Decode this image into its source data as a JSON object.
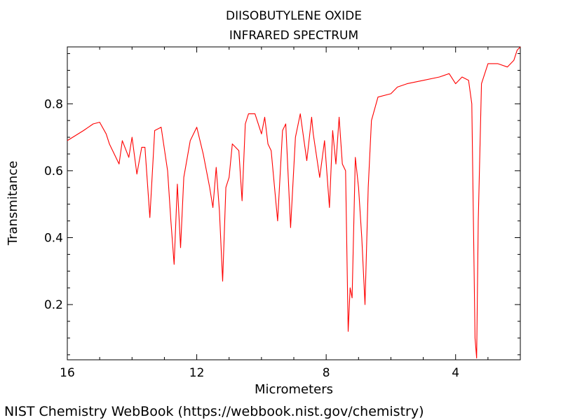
{
  "chart_data": {
    "type": "line",
    "title": "DIISOBUTYLENE OXIDE",
    "subtitle": "INFRARED SPECTRUM",
    "xlabel": "Micrometers",
    "ylabel": "Transmitance",
    "xlim": [
      16,
      2.0
    ],
    "ylim": [
      0.035,
      0.97
    ],
    "x_major_ticks": [
      16,
      12,
      8,
      4
    ],
    "x_tick_labels": [
      "16",
      "12",
      "8",
      "4"
    ],
    "y_major_ticks": [
      0.2,
      0.4,
      0.6,
      0.8
    ],
    "y_tick_labels": [
      "0.2",
      "0.4",
      "0.6",
      "0.8"
    ],
    "grid": false,
    "legend": "none",
    "line_color": "#ff0000",
    "series": [
      {
        "x": [
          16.0,
          15.5,
          15.2,
          15.0,
          14.8,
          14.7,
          14.4,
          14.3,
          14.1,
          14.0,
          13.85,
          13.7,
          13.6,
          13.45,
          13.3,
          13.1,
          12.9,
          12.8,
          12.7,
          12.6,
          12.5,
          12.4,
          12.2,
          12.0,
          11.8,
          11.6,
          11.5,
          11.4,
          11.3,
          11.2,
          11.1,
          11.0,
          10.9,
          10.7,
          10.6,
          10.5,
          10.4,
          10.2,
          10.0,
          9.9,
          9.8,
          9.7,
          9.5,
          9.35,
          9.25,
          9.1,
          8.95,
          8.8,
          8.6,
          8.45,
          8.4,
          8.2,
          8.05,
          7.9,
          7.8,
          7.7,
          7.6,
          7.5,
          7.4,
          7.32,
          7.26,
          7.2,
          7.1,
          7.0,
          6.9,
          6.8,
          6.7,
          6.6,
          6.4,
          6.0,
          5.8,
          5.5,
          5.0,
          4.5,
          4.2,
          4.0,
          3.8,
          3.6,
          3.5,
          3.45,
          3.4,
          3.35,
          3.3,
          3.2,
          3.0,
          2.7,
          2.4,
          2.2,
          2.1,
          2.0
        ],
        "y": [
          0.69,
          0.72,
          0.74,
          0.745,
          0.71,
          0.68,
          0.62,
          0.69,
          0.64,
          0.7,
          0.59,
          0.67,
          0.67,
          0.46,
          0.72,
          0.73,
          0.6,
          0.45,
          0.32,
          0.56,
          0.37,
          0.58,
          0.69,
          0.73,
          0.65,
          0.55,
          0.49,
          0.61,
          0.48,
          0.27,
          0.55,
          0.58,
          0.68,
          0.66,
          0.51,
          0.74,
          0.77,
          0.77,
          0.71,
          0.76,
          0.68,
          0.66,
          0.45,
          0.72,
          0.74,
          0.43,
          0.7,
          0.77,
          0.63,
          0.76,
          0.71,
          0.58,
          0.69,
          0.49,
          0.72,
          0.62,
          0.76,
          0.62,
          0.6,
          0.12,
          0.25,
          0.22,
          0.64,
          0.55,
          0.4,
          0.2,
          0.55,
          0.75,
          0.82,
          0.83,
          0.85,
          0.86,
          0.87,
          0.88,
          0.89,
          0.86,
          0.88,
          0.87,
          0.8,
          0.45,
          0.1,
          0.04,
          0.45,
          0.86,
          0.92,
          0.92,
          0.91,
          0.93,
          0.96,
          0.97
        ]
      }
    ]
  },
  "footer": {
    "credit": "NIST Chemistry WebBook (https://webbook.nist.gov/chemistry)"
  }
}
